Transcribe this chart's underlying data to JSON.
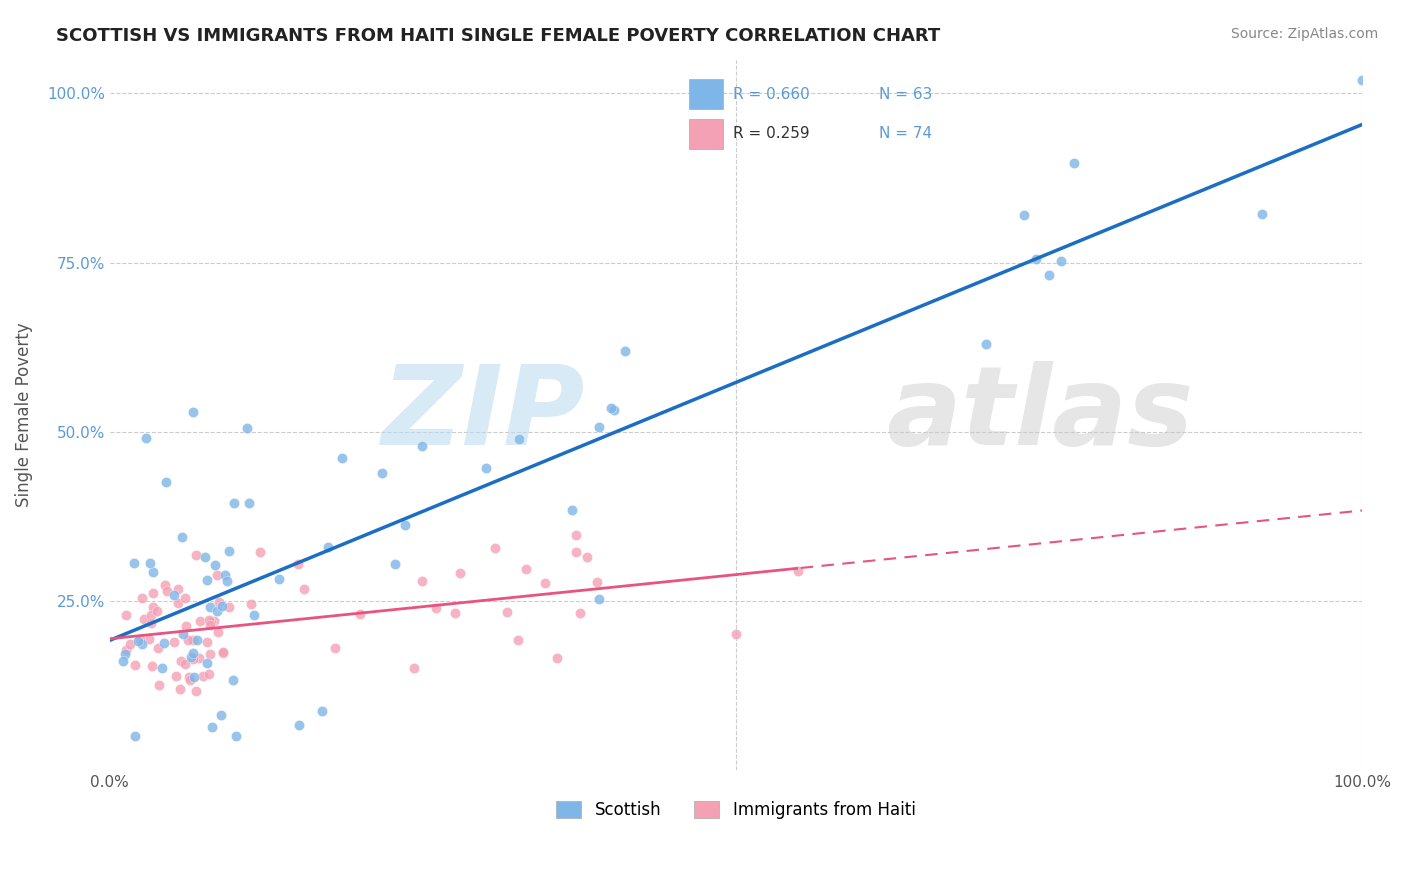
{
  "title": "SCOTTISH VS IMMIGRANTS FROM HAITI SINGLE FEMALE POVERTY CORRELATION CHART",
  "source": "Source: ZipAtlas.com",
  "ylabel": "Single Female Poverty",
  "scottish_color": "#7EB6E8",
  "haiti_color": "#F4A0B5",
  "regression_scottish_color": "#1B6EC2",
  "regression_haiti_color": "#E75480",
  "R_scottish": 0.66,
  "N_scottish": 63,
  "R_haiti": 0.259,
  "N_haiti": 74,
  "watermark_zip": "ZIP",
  "watermark_atlas": "atlas"
}
